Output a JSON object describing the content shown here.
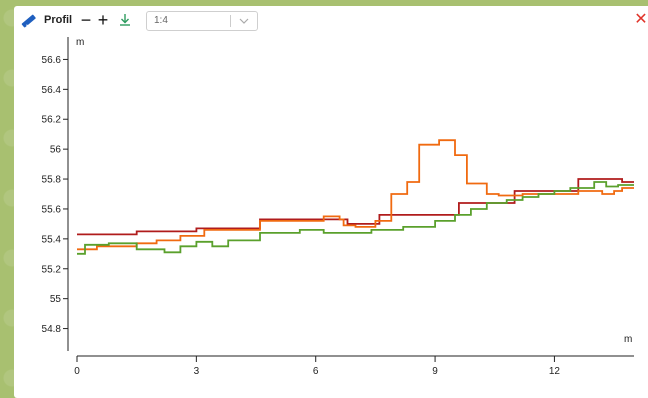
{
  "toolbar": {
    "title": "Profil",
    "minus_label": "−",
    "plus_label": "+",
    "scale_value": "1:4",
    "close_label": "✕",
    "icons": {
      "ruler": "ruler-icon",
      "download": "download-icon",
      "chevron": "chevron-down-icon",
      "close": "close-icon"
    },
    "colors": {
      "ruler": "#1f5fbf",
      "download": "#2c9b5e",
      "close": "#e0342a"
    }
  },
  "chart_data": {
    "type": "line",
    "xlabel": "m",
    "ylabel": "m",
    "xlim": [
      0,
      14
    ],
    "ylim": [
      54.65,
      56.75
    ],
    "x_ticks": [
      0,
      3,
      6,
      9,
      12
    ],
    "x_tick_labels": [
      "0",
      "3",
      "6",
      "9",
      "12"
    ],
    "y_ticks": [
      54.8,
      55,
      55.2,
      55.4,
      55.6,
      55.8,
      56,
      56.2,
      56.4,
      56.6
    ],
    "y_tick_labels": [
      "54.8",
      "55",
      "55.2",
      "55.4",
      "55.6",
      "55.8",
      "56",
      "56.2",
      "56.4",
      "56.6"
    ],
    "grid": false,
    "series": [
      {
        "color": "#b01c1c",
        "x": [
          0,
          1.5,
          1.5,
          3,
          3,
          4.6,
          4.6,
          6.8,
          6.8,
          7.6,
          7.6,
          9.6,
          9.6,
          11,
          11,
          12.6,
          12.6,
          13.7,
          13.7,
          14
        ],
        "y": [
          55.43,
          55.43,
          55.45,
          55.45,
          55.47,
          55.47,
          55.53,
          55.53,
          55.5,
          55.5,
          55.56,
          55.56,
          55.64,
          55.64,
          55.72,
          55.72,
          55.8,
          55.8,
          55.78,
          55.78
        ]
      },
      {
        "color": "#f06a10",
        "x": [
          0,
          0.5,
          0.5,
          1.5,
          1.5,
          2,
          2,
          2.6,
          2.6,
          3.2,
          3.2,
          4.6,
          4.6,
          6.2,
          6.2,
          6.6,
          6.6,
          6.7,
          6.7,
          7,
          7,
          7.5,
          7.5,
          7.9,
          7.9,
          8.3,
          8.3,
          8.6,
          8.6,
          9.1,
          9.1,
          9.5,
          9.5,
          9.8,
          9.8,
          10.3,
          10.3,
          10.6,
          10.6,
          11.2,
          11.2,
          12.6,
          12.6,
          13.2,
          13.2,
          13.5,
          13.5,
          13.7,
          13.7,
          14
        ],
        "y": [
          55.33,
          55.33,
          55.35,
          55.35,
          55.37,
          55.37,
          55.39,
          55.39,
          55.42,
          55.42,
          55.46,
          55.46,
          55.52,
          55.52,
          55.55,
          55.55,
          55.53,
          55.53,
          55.49,
          55.49,
          55.48,
          55.48,
          55.52,
          55.52,
          55.7,
          55.7,
          55.78,
          55.78,
          56.03,
          56.03,
          56.06,
          56.06,
          55.96,
          55.96,
          55.77,
          55.77,
          55.7,
          55.7,
          55.69,
          55.69,
          55.7,
          55.7,
          55.72,
          55.72,
          55.7,
          55.7,
          55.72,
          55.72,
          55.74,
          55.74
        ]
      },
      {
        "color": "#5aa02c",
        "x": [
          0,
          0.2,
          0.2,
          0.8,
          0.8,
          1.5,
          1.5,
          2.2,
          2.2,
          2.6,
          2.6,
          3,
          3,
          3.4,
          3.4,
          3.8,
          3.8,
          4.6,
          4.6,
          5.6,
          5.6,
          6.2,
          6.2,
          7.4,
          7.4,
          8.2,
          8.2,
          9,
          9,
          9.5,
          9.5,
          9.9,
          9.9,
          10.3,
          10.3,
          10.8,
          10.8,
          11.2,
          11.2,
          11.6,
          11.6,
          12,
          12,
          12.4,
          12.4,
          13,
          13,
          13.3,
          13.3,
          13.6,
          13.6,
          14
        ],
        "y": [
          55.3,
          55.3,
          55.36,
          55.36,
          55.37,
          55.37,
          55.33,
          55.33,
          55.31,
          55.31,
          55.35,
          55.35,
          55.38,
          55.38,
          55.35,
          55.35,
          55.39,
          55.39,
          55.44,
          55.44,
          55.46,
          55.46,
          55.44,
          55.44,
          55.46,
          55.46,
          55.48,
          55.48,
          55.52,
          55.52,
          55.56,
          55.56,
          55.6,
          55.6,
          55.64,
          55.64,
          55.66,
          55.66,
          55.68,
          55.68,
          55.7,
          55.7,
          55.72,
          55.72,
          55.74,
          55.74,
          55.78,
          55.78,
          55.75,
          55.75,
          55.76,
          55.76
        ]
      }
    ]
  }
}
